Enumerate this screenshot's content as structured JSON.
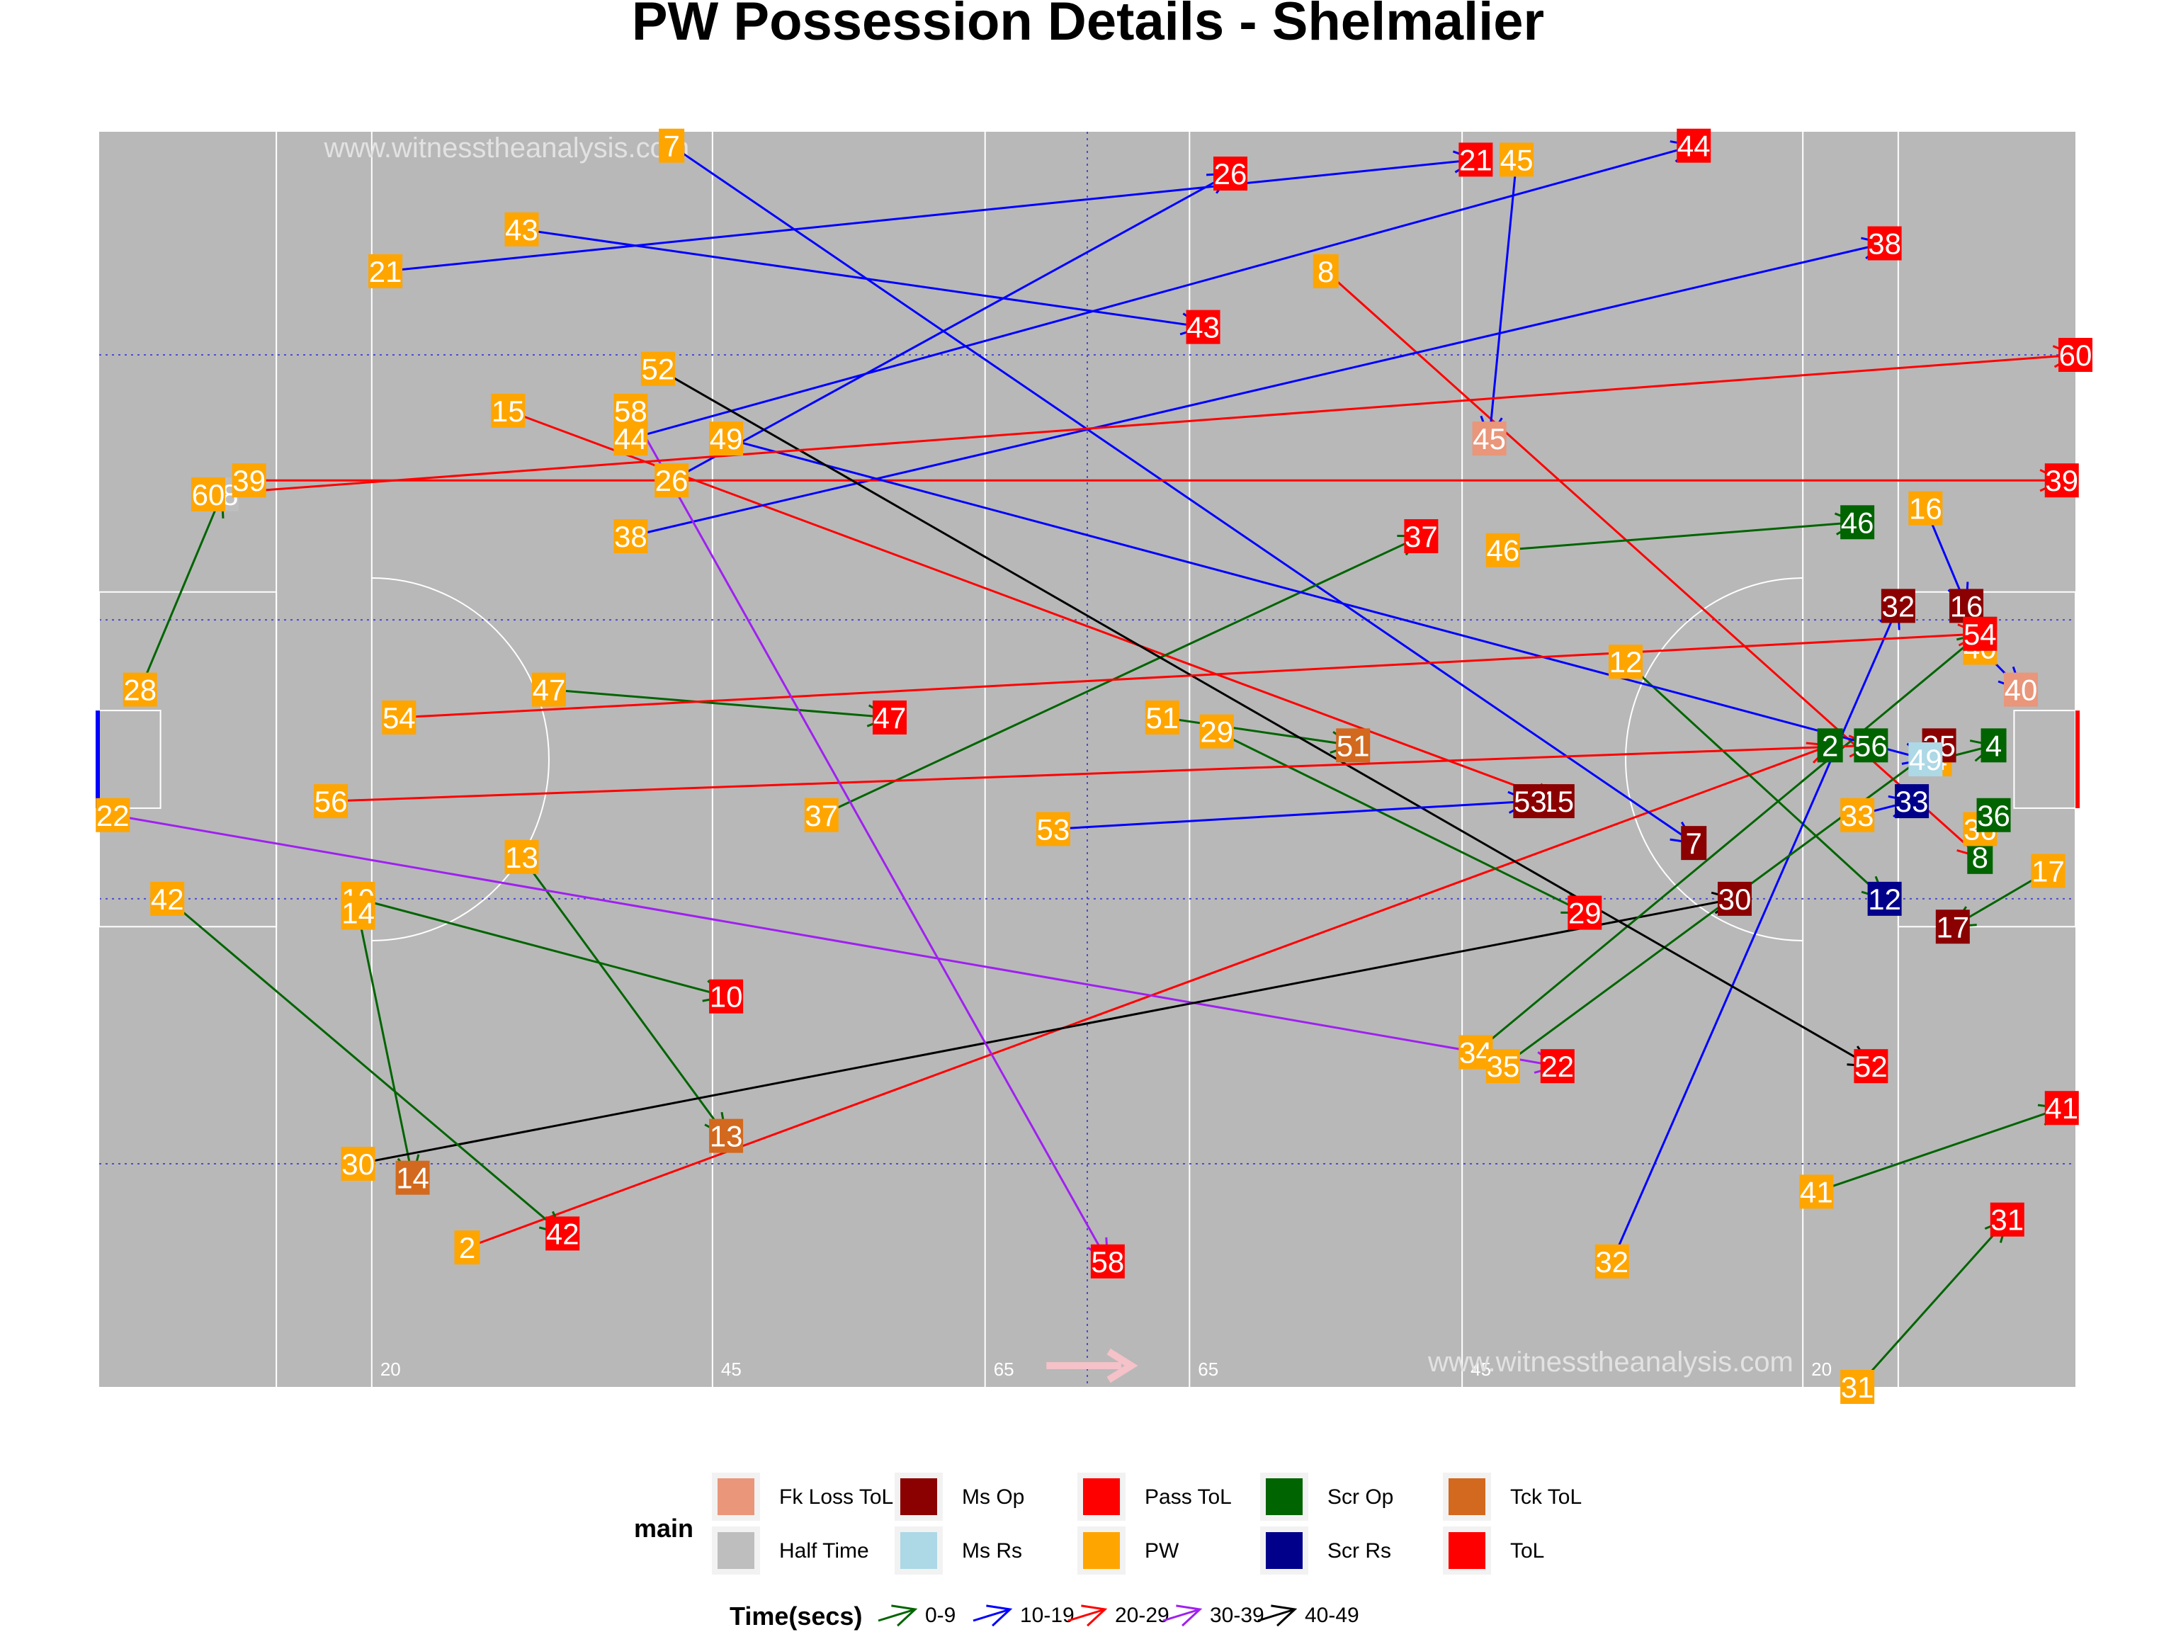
{
  "chart_data": {
    "type": "scatter",
    "title": "PW Possession Details - Shelmalier",
    "watermark": "www.witnesstheanalysis.com",
    "pitch": {
      "color": "#b8b8b8",
      "x_range": [
        0,
        145
      ],
      "y_range": [
        0,
        90
      ],
      "yard_labels": [
        {
          "x": 20,
          "text": "20"
        },
        {
          "x": 45,
          "text": "45"
        },
        {
          "x": 65,
          "text": "65"
        },
        {
          "x": 80,
          "text": "65"
        },
        {
          "x": 100,
          "text": "45"
        },
        {
          "x": 125,
          "text": "20"
        }
      ]
    },
    "categories": {
      "Fk Loss ToL": "#e9967a",
      "Ms Op": "#8b0000",
      "Pass ToL": "#ff0000",
      "Scr Op": "#006400",
      "Tck ToL": "#d2691e",
      "Half Time": "#bebebe",
      "Ms Rs": "#add8e6",
      "PW": "#ffa500",
      "Scr Rs": "#00008b",
      "ToL": "#ff0000"
    },
    "time_colors": {
      "0-9": "#006400",
      "10-19": "#0000ff",
      "20-29": "#ff0000",
      "30-39": "#a020f0",
      "40-49": "#000000"
    },
    "possessions": [
      {
        "id": "2",
        "time": "20-29",
        "start": [
          27,
          10
        ],
        "end": [
          127,
          46
        ],
        "end_cat": "Scr Op"
      },
      {
        "id": "4",
        "time": "0-9",
        "start": [
          135,
          45
        ],
        "end": [
          139,
          46
        ],
        "end_cat": "Scr Op"
      },
      {
        "id": "7",
        "time": "10-19",
        "start": [
          42,
          89
        ],
        "end": [
          117,
          39
        ],
        "end_cat": "Ms Op"
      },
      {
        "id": "8",
        "time": "20-29",
        "start": [
          90,
          80
        ],
        "end": [
          138,
          38
        ],
        "end_cat": "Scr Op"
      },
      {
        "id": "10",
        "time": "0-9",
        "start": [
          19,
          35
        ],
        "end": [
          46,
          28
        ],
        "end_cat": "ToL"
      },
      {
        "id": "12",
        "time": "0-9",
        "start": [
          112,
          52
        ],
        "end": [
          131,
          35
        ],
        "end_cat": "Scr Rs"
      },
      {
        "id": "13",
        "time": "0-9",
        "start": [
          31,
          38
        ],
        "end": [
          46,
          18
        ],
        "end_cat": "Tck ToL"
      },
      {
        "id": "14",
        "time": "0-9",
        "start": [
          19,
          34
        ],
        "end": [
          23,
          15
        ],
        "end_cat": "Tck ToL"
      },
      {
        "id": "15",
        "time": "20-29",
        "start": [
          30,
          70
        ],
        "end": [
          107,
          42
        ],
        "end_cat": "Ms Op"
      },
      {
        "id": "16",
        "time": "10-19",
        "start": [
          134,
          63
        ],
        "end": [
          137,
          56
        ],
        "end_cat": "Ms Op"
      },
      {
        "id": "17",
        "time": "0-9",
        "start": [
          143,
          37
        ],
        "end": [
          136,
          33
        ],
        "end_cat": "Ms Op"
      },
      {
        "id": "21",
        "time": "10-19",
        "start": [
          21,
          80
        ],
        "end": [
          101,
          88
        ],
        "end_cat": "ToL"
      },
      {
        "id": "22",
        "time": "30-39",
        "start": [
          1,
          41
        ],
        "end": [
          107,
          23
        ],
        "end_cat": "ToL"
      },
      {
        "id": "26",
        "time": "10-19",
        "start": [
          42,
          65
        ],
        "end": [
          83,
          87
        ],
        "end_cat": "ToL"
      },
      {
        "id": "28",
        "time": "0-9",
        "start": [
          3,
          50
        ],
        "end": [
          9,
          64
        ],
        "end_cat": "Half Time"
      },
      {
        "id": "29",
        "time": "0-9",
        "start": [
          82,
          47
        ],
        "end": [
          109,
          34
        ],
        "end_cat": "ToL"
      },
      {
        "id": "30",
        "time": "40-49",
        "start": [
          19,
          16
        ],
        "end": [
          120,
          35
        ],
        "end_cat": "Ms Op"
      },
      {
        "id": "31",
        "time": "0-9",
        "start": [
          129,
          0
        ],
        "end": [
          140,
          12
        ],
        "end_cat": "ToL"
      },
      {
        "id": "32",
        "time": "10-19",
        "start": [
          111,
          9
        ],
        "end": [
          132,
          56
        ],
        "end_cat": "Ms Op"
      },
      {
        "id": "33",
        "time": "10-19",
        "start": [
          129,
          41
        ],
        "end": [
          133,
          42
        ],
        "end_cat": "Scr Rs"
      },
      {
        "id": "34",
        "time": "0-9",
        "start": [
          101,
          24
        ],
        "end": [
          138,
          54
        ],
        "end_cat": "Scr Op"
      },
      {
        "id": "35",
        "time": "0-9",
        "start": [
          103,
          23
        ],
        "end": [
          135,
          46
        ],
        "end_cat": "Ms Op"
      },
      {
        "id": "36",
        "time": "0-9",
        "start": [
          138,
          40
        ],
        "end": [
          139,
          41
        ],
        "end_cat": "Scr Op"
      },
      {
        "id": "37",
        "time": "0-9",
        "start": [
          53,
          41
        ],
        "end": [
          97,
          61
        ],
        "end_cat": "ToL"
      },
      {
        "id": "38",
        "time": "10-19",
        "start": [
          39,
          61
        ],
        "end": [
          131,
          82
        ],
        "end_cat": "ToL"
      },
      {
        "id": "39",
        "time": "20-29",
        "start": [
          11,
          65
        ],
        "end": [
          144,
          65
        ],
        "end_cat": "ToL"
      },
      {
        "id": "40",
        "time": "10-19",
        "start": [
          138,
          53
        ],
        "end": [
          141,
          50
        ],
        "end_cat": "Fk Loss ToL"
      },
      {
        "id": "41",
        "time": "0-9",
        "start": [
          126,
          14
        ],
        "end": [
          144,
          20
        ],
        "end_cat": "ToL"
      },
      {
        "id": "42",
        "time": "0-9",
        "start": [
          5,
          35
        ],
        "end": [
          34,
          11
        ],
        "end_cat": "ToL"
      },
      {
        "id": "43",
        "time": "10-19",
        "start": [
          31,
          83
        ],
        "end": [
          81,
          76
        ],
        "end_cat": "ToL"
      },
      {
        "id": "44",
        "time": "10-19",
        "start": [
          39,
          68
        ],
        "end": [
          117,
          89
        ],
        "end_cat": "ToL"
      },
      {
        "id": "45",
        "time": "10-19",
        "start": [
          104,
          88
        ],
        "end": [
          102,
          68
        ],
        "end_cat": "Fk Loss ToL"
      },
      {
        "id": "46",
        "time": "0-9",
        "start": [
          103,
          60
        ],
        "end": [
          129,
          62
        ],
        "end_cat": "Scr Op"
      },
      {
        "id": "47",
        "time": "0-9",
        "start": [
          33,
          50
        ],
        "end": [
          58,
          48
        ],
        "end_cat": "ToL"
      },
      {
        "id": "49",
        "time": "10-19",
        "start": [
          46,
          68
        ],
        "end": [
          134,
          45
        ],
        "end_cat": "Ms Rs"
      },
      {
        "id": "51",
        "time": "0-9",
        "start": [
          78,
          48
        ],
        "end": [
          92,
          46
        ],
        "end_cat": "Tck ToL"
      },
      {
        "id": "52",
        "time": "40-49",
        "start": [
          41,
          73
        ],
        "end": [
          130,
          23
        ],
        "end_cat": "ToL"
      },
      {
        "id": "53",
        "time": "10-19",
        "start": [
          70,
          40
        ],
        "end": [
          105,
          42
        ],
        "end_cat": "Ms Op"
      },
      {
        "id": "54",
        "time": "20-29",
        "start": [
          22,
          48
        ],
        "end": [
          138,
          54
        ],
        "end_cat": "ToL"
      },
      {
        "id": "56",
        "time": "20-29",
        "start": [
          17,
          42
        ],
        "end": [
          130,
          46
        ],
        "end_cat": "Scr Op"
      },
      {
        "id": "58",
        "time": "30-39",
        "start": [
          39,
          70
        ],
        "end": [
          74,
          9
        ],
        "end_cat": "ToL"
      },
      {
        "id": "60",
        "time": "20-29",
        "start": [
          8,
          64
        ],
        "end": [
          145,
          74
        ],
        "end_cat": "ToL"
      }
    ]
  },
  "legend": {
    "main_title": "main",
    "main_items": [
      {
        "label": "Fk Loss ToL",
        "color": "#e9967a"
      },
      {
        "label": "Half Time",
        "color": "#bebebe"
      },
      {
        "label": "Ms Op",
        "color": "#8b0000"
      },
      {
        "label": "Ms Rs",
        "color": "#add8e6"
      },
      {
        "label": "Pass ToL",
        "color": "#ff0000"
      },
      {
        "label": "PW",
        "color": "#ffa500"
      },
      {
        "label": "Scr Op",
        "color": "#006400"
      },
      {
        "label": "Scr Rs",
        "color": "#00008b"
      },
      {
        "label": "Tck ToL",
        "color": "#d2691e"
      },
      {
        "label": "ToL",
        "color": "#ff0000"
      }
    ],
    "time_title": "Time(secs)",
    "time_items": [
      {
        "label": "0-9",
        "color": "#006400"
      },
      {
        "label": "10-19",
        "color": "#0000ff"
      },
      {
        "label": "20-29",
        "color": "#ff0000"
      },
      {
        "label": "30-39",
        "color": "#a020f0"
      },
      {
        "label": "40-49",
        "color": "#000000"
      }
    ]
  }
}
